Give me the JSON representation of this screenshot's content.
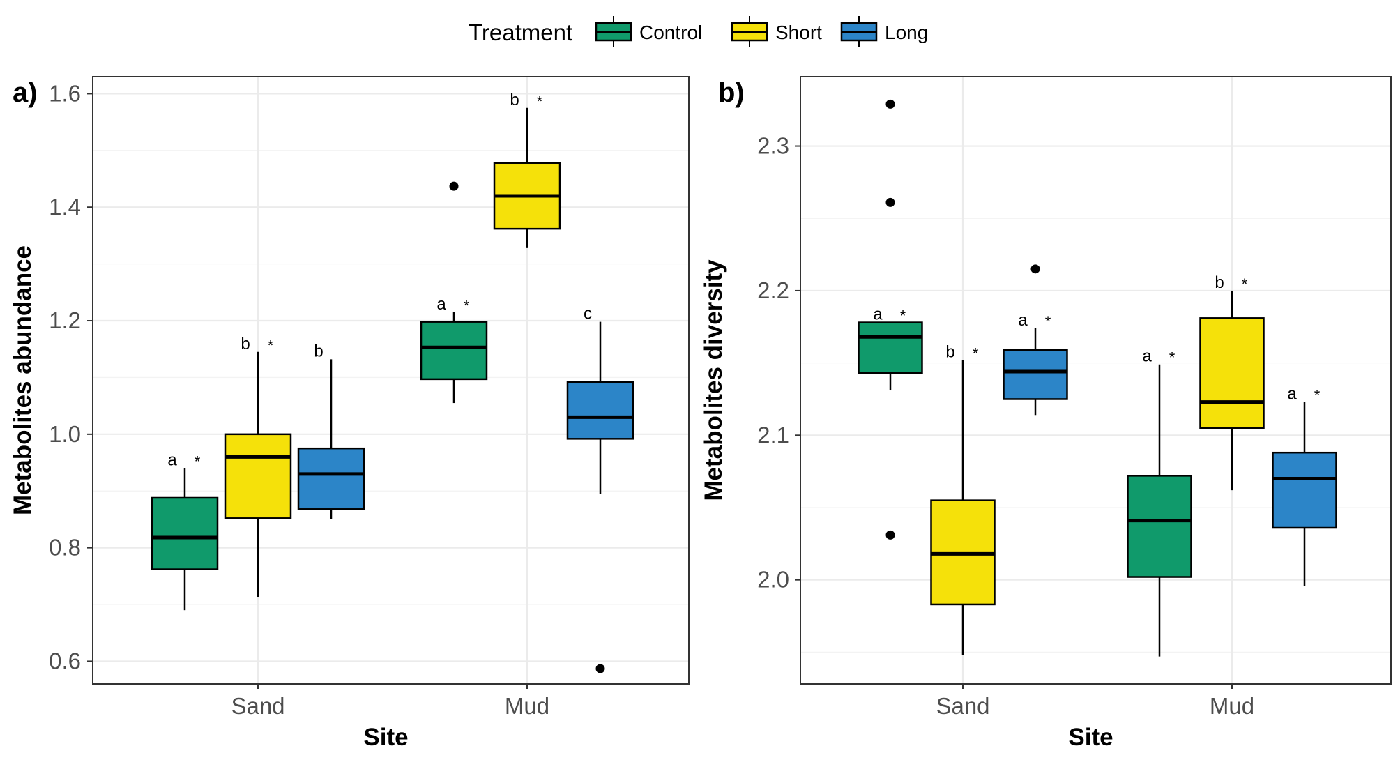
{
  "legend": {
    "title": "Treatment",
    "placement": "top",
    "items": [
      {
        "label": "Control",
        "color": "#109a6b"
      },
      {
        "label": "Short",
        "color": "#f5e10a"
      },
      {
        "label": "Long",
        "color": "#2c85c8"
      }
    ]
  },
  "chart_data": [
    {
      "type": "boxplot",
      "panel_label": "a)",
      "xlabel": "Site",
      "ylabel": "Metabolites abundance",
      "categories": [
        "Sand",
        "Mud"
      ],
      "ylim": [
        0.56,
        1.63
      ],
      "yticks": [
        0.6,
        0.8,
        1.0,
        1.2,
        1.4,
        1.6
      ],
      "yticklabels": [
        "0.6",
        "0.8",
        "1.0",
        "1.2",
        "1.4",
        "1.6"
      ],
      "grid": true,
      "series": [
        {
          "name": "Control",
          "boxes": [
            {
              "category": "Sand",
              "lower": 0.69,
              "q1": 0.762,
              "median": 0.818,
              "q3": 0.888,
              "upper": 0.94,
              "outliers": [],
              "letter": "a",
              "sig": "*"
            },
            {
              "category": "Mud",
              "lower": 1.055,
              "q1": 1.097,
              "median": 1.153,
              "q3": 1.198,
              "upper": 1.215,
              "outliers": [
                1.437
              ],
              "letter": "a",
              "sig": "*"
            }
          ]
        },
        {
          "name": "Short",
          "boxes": [
            {
              "category": "Sand",
              "lower": 0.713,
              "q1": 0.852,
              "median": 0.96,
              "q3": 1.0,
              "upper": 1.145,
              "outliers": [],
              "letter": "b",
              "sig": "*"
            },
            {
              "category": "Mud",
              "lower": 1.328,
              "q1": 1.362,
              "median": 1.42,
              "q3": 1.478,
              "upper": 1.575,
              "outliers": [],
              "letter": "b",
              "sig": "*"
            }
          ]
        },
        {
          "name": "Long",
          "boxes": [
            {
              "category": "Sand",
              "lower": 0.85,
              "q1": 0.868,
              "median": 0.93,
              "q3": 0.975,
              "upper": 1.132,
              "outliers": [],
              "letter": "b",
              "sig": ""
            },
            {
              "category": "Mud",
              "lower": 0.895,
              "q1": 0.992,
              "median": 1.03,
              "q3": 1.092,
              "upper": 1.198,
              "outliers": [
                0.587
              ],
              "letter": "c",
              "sig": ""
            }
          ]
        }
      ]
    },
    {
      "type": "boxplot",
      "panel_label": "b)",
      "xlabel": "Site",
      "ylabel": "Metabolites diversity",
      "categories": [
        "Sand",
        "Mud"
      ],
      "ylim": [
        1.928,
        2.348
      ],
      "yticks": [
        2.0,
        2.1,
        2.2,
        2.3
      ],
      "yticklabels": [
        "2.0",
        "2.1",
        "2.2",
        "2.3"
      ],
      "grid": true,
      "series": [
        {
          "name": "Control",
          "boxes": [
            {
              "category": "Sand",
              "lower": 2.131,
              "q1": 2.143,
              "median": 2.168,
              "q3": 2.178,
              "upper": 2.178,
              "outliers": [
                2.329,
                2.261,
                2.031
              ],
              "letter": "a",
              "sig": "*"
            },
            {
              "category": "Mud",
              "lower": 1.947,
              "q1": 2.002,
              "median": 2.041,
              "q3": 2.072,
              "upper": 2.149,
              "outliers": [],
              "letter": "a",
              "sig": "*"
            }
          ]
        },
        {
          "name": "Short",
          "boxes": [
            {
              "category": "Sand",
              "lower": 1.948,
              "q1": 1.983,
              "median": 2.018,
              "q3": 2.055,
              "upper": 2.152,
              "outliers": [],
              "letter": "b",
              "sig": "*"
            },
            {
              "category": "Mud",
              "lower": 2.062,
              "q1": 2.105,
              "median": 2.123,
              "q3": 2.181,
              "upper": 2.2,
              "outliers": [],
              "letter": "b",
              "sig": "*"
            }
          ]
        },
        {
          "name": "Long",
          "boxes": [
            {
              "category": "Sand",
              "lower": 2.114,
              "q1": 2.125,
              "median": 2.144,
              "q3": 2.159,
              "upper": 2.174,
              "outliers": [
                2.215
              ],
              "letter": "a",
              "sig": "*"
            },
            {
              "category": "Mud",
              "lower": 1.996,
              "q1": 2.036,
              "median": 2.07,
              "q3": 2.088,
              "upper": 2.123,
              "outliers": [],
              "letter": "a",
              "sig": "*"
            }
          ]
        }
      ]
    }
  ]
}
